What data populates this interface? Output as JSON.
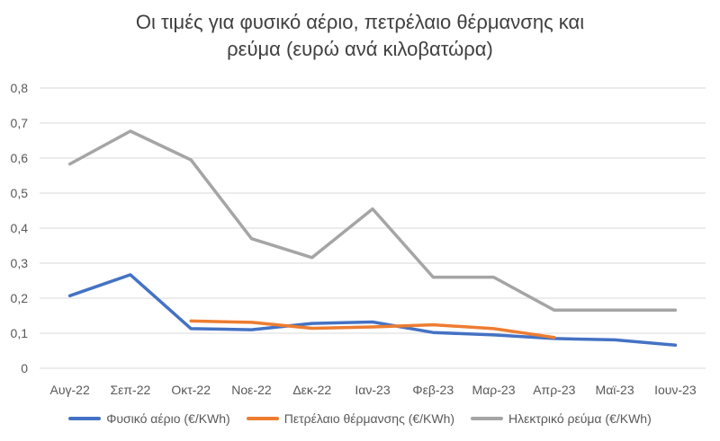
{
  "chart_data": {
    "type": "line",
    "title_lines": [
      "Οι τιμές για φυσικό αέριο, πετρέλαιο θέρμανσης και",
      "ρεύμα (ευρώ ανά κιλοβατώρα)"
    ],
    "categories": [
      "Αυγ-22",
      "Σεπ-22",
      "Οκτ-22",
      "Νοε-22",
      "Δεκ-22",
      "Ιαν-23",
      "Φεβ-23",
      "Μαρ-23",
      "Απρ-23",
      "Μαϊ-23",
      "Ιουν-23"
    ],
    "ylim": [
      0,
      0.8
    ],
    "yticks": [
      "0",
      "0,1",
      "0,2",
      "0,3",
      "0,4",
      "0,5",
      "0,6",
      "0,7",
      "0,8"
    ],
    "grid": true,
    "legend_position": "bottom",
    "series": [
      {
        "name": "Φυσικό αέριο (€/KWh)",
        "color": "#4472c4",
        "values": [
          0.207,
          0.267,
          0.113,
          0.11,
          0.128,
          0.132,
          0.102,
          0.095,
          0.085,
          0.081,
          0.066
        ]
      },
      {
        "name": "Πετρέλαιο θέρμανσης (€/KWh)",
        "color": "#ed7d31",
        "values": [
          null,
          null,
          0.135,
          0.131,
          0.114,
          0.118,
          0.124,
          0.113,
          0.088,
          null,
          null
        ]
      },
      {
        "name": "Ηλεκτρικό ρεύμα (€/KWh)",
        "color": "#a5a5a5",
        "values": [
          0.583,
          0.677,
          0.595,
          0.37,
          0.316,
          0.455,
          0.26,
          0.26,
          0.166,
          0.166,
          0.166
        ]
      }
    ]
  }
}
